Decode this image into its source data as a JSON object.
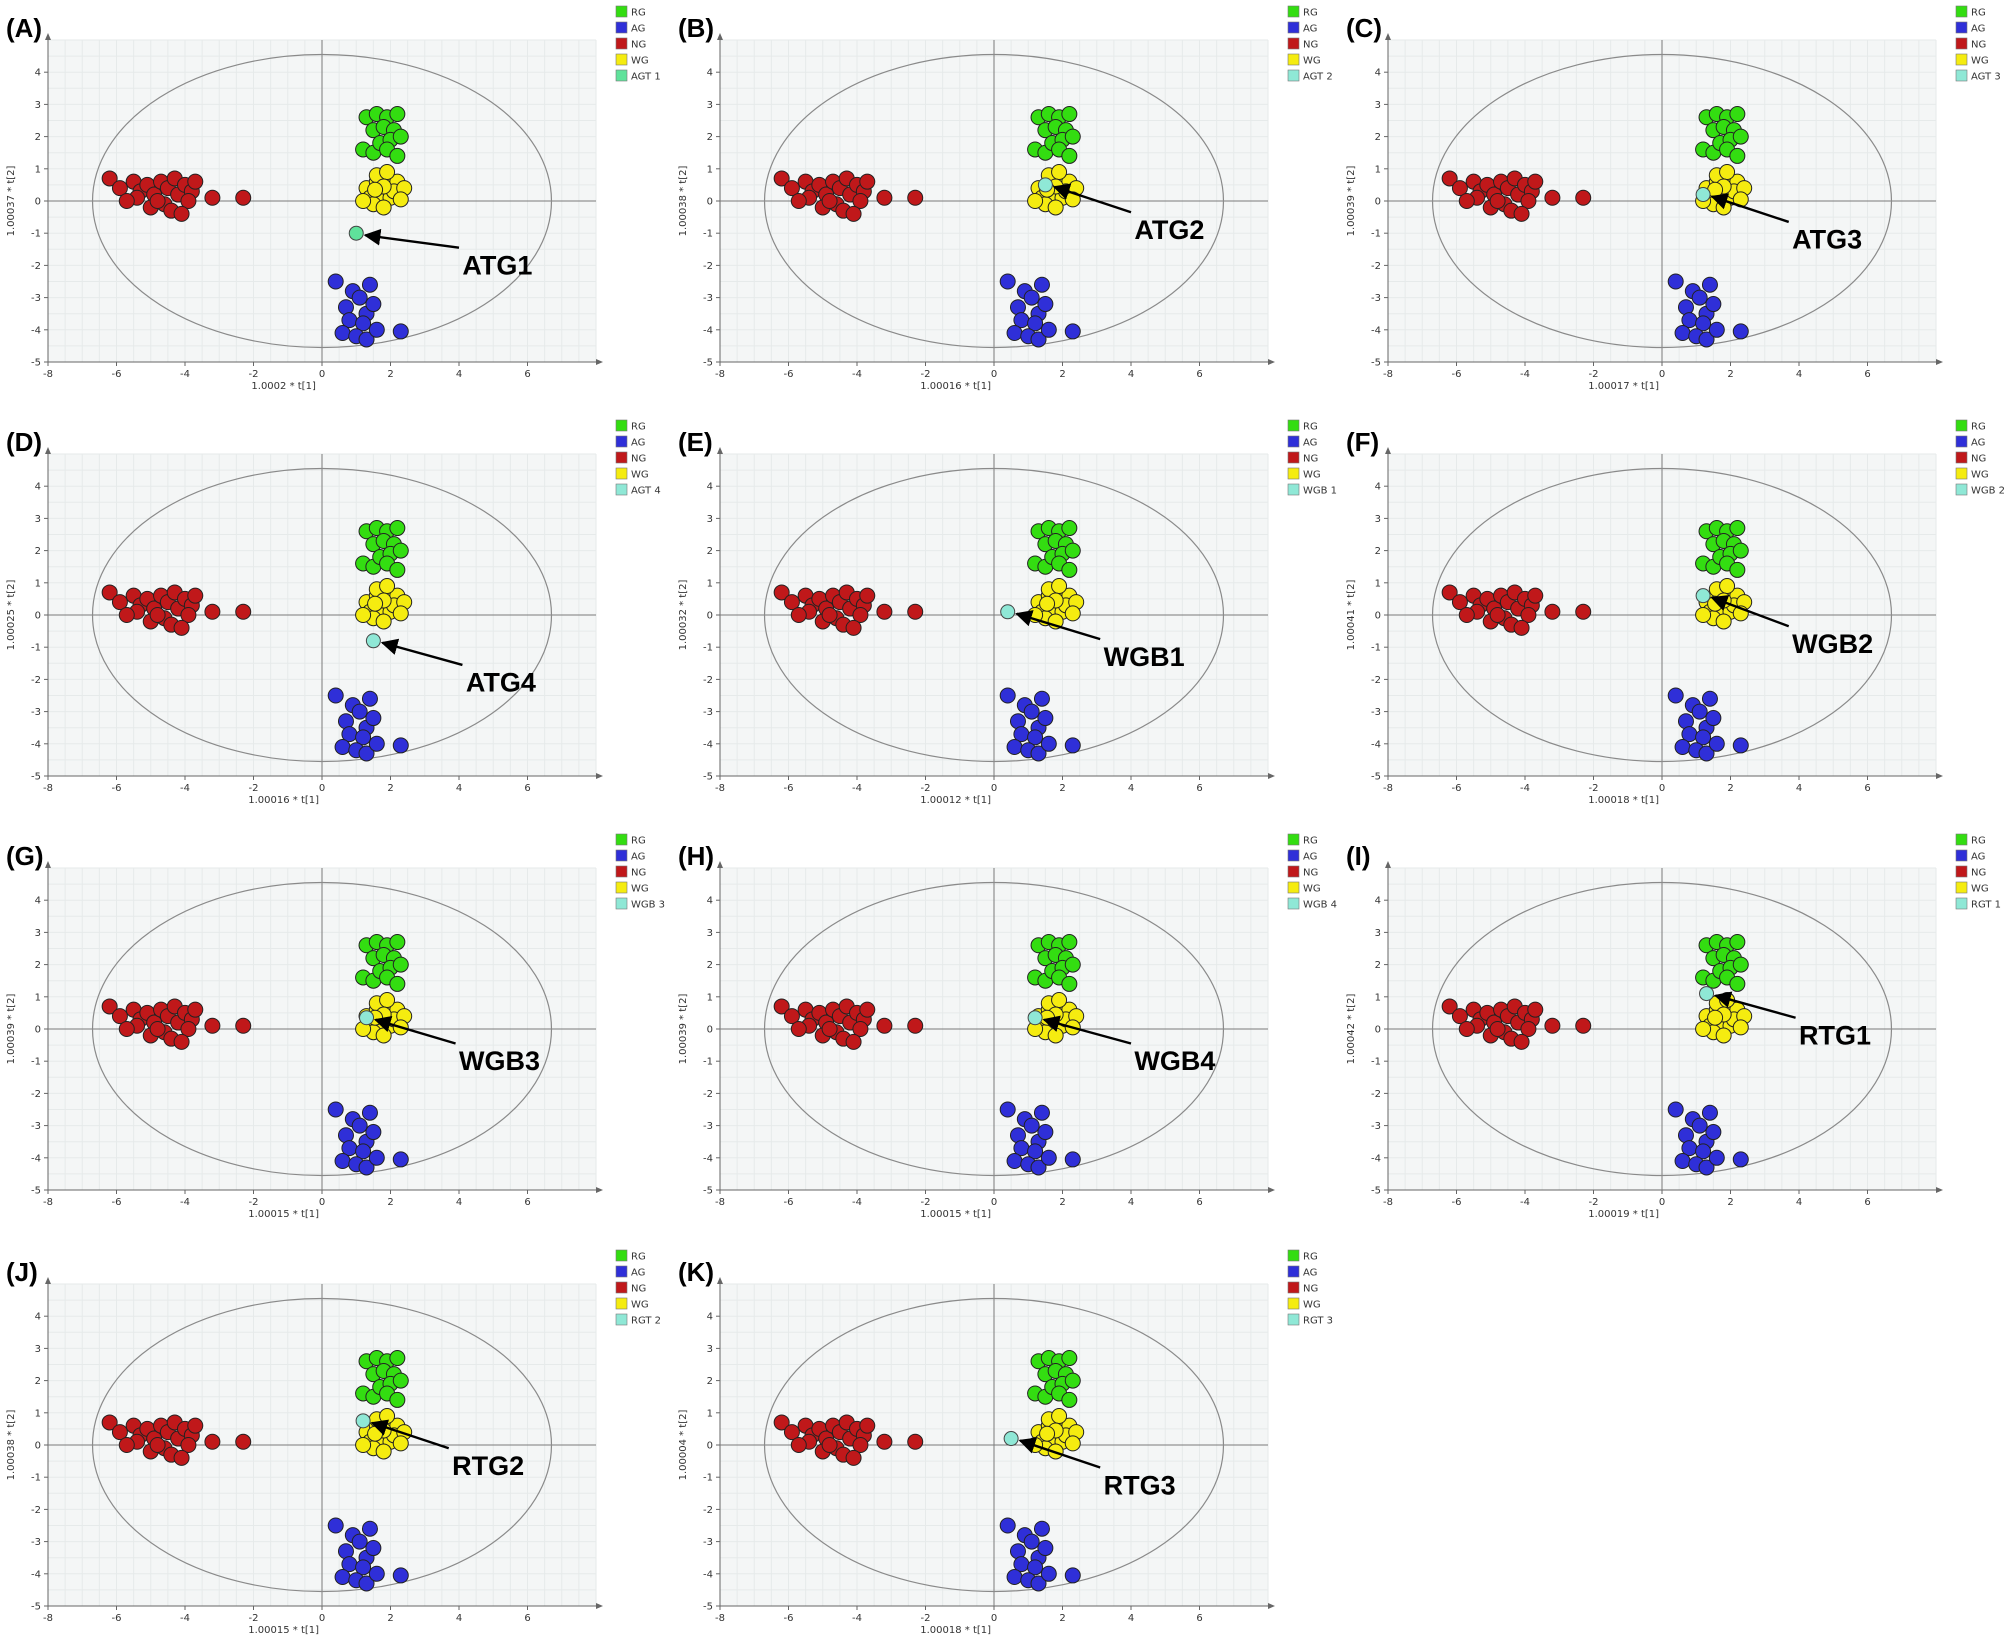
{
  "colors": {
    "RG": "#33dd11",
    "AG": "#2f2fd8",
    "NG": "#c0181a",
    "WG": "#f5ec10",
    "test": "#8fe8d6",
    "test_agt1": "#5fe29b"
  },
  "chart_data": [
    {
      "type": "scatter",
      "panel_label": "(A)",
      "xlabel": "1.0002 * t[1]",
      "ylabel": "1.00037 * t[2]",
      "xlim": [
        -8,
        8
      ],
      "ylim": [
        -5,
        5
      ],
      "xticks": [
        -8,
        -6,
        -4,
        -2,
        0,
        2,
        4,
        6
      ],
      "yticks": [
        -5,
        -4,
        -3,
        -2,
        -1,
        0,
        1,
        2,
        3,
        4
      ],
      "legend": [
        "RG",
        "AG",
        "NG",
        "WG",
        "AGT 1"
      ],
      "annotation": "ATG1",
      "test_point": [
        1,
        -1
      ],
      "test_color_key": "test_agt1",
      "arrow_from": [
        4.0,
        -1.45
      ],
      "text_at": [
        4.1,
        -2.0
      ]
    },
    {
      "type": "scatter",
      "panel_label": "(B)",
      "xlabel": "1.00016 * t[1]",
      "ylabel": "1.00038 * t[2]",
      "xlim": [
        -8,
        8
      ],
      "ylim": [
        -5,
        5
      ],
      "xticks": [
        -8,
        -6,
        -4,
        -2,
        0,
        2,
        4,
        6
      ],
      "yticks": [
        -5,
        -4,
        -3,
        -2,
        -1,
        0,
        1,
        2,
        3,
        4
      ],
      "legend": [
        "RG",
        "AG",
        "NG",
        "WG",
        "AGT 2"
      ],
      "annotation": "ATG2",
      "test_point": [
        1.5,
        0.5
      ],
      "test_color_key": "test",
      "arrow_from": [
        4.0,
        -0.35
      ],
      "text_at": [
        4.1,
        -0.9
      ]
    },
    {
      "type": "scatter",
      "panel_label": "(C)",
      "xlabel": "1.00017 * t[1]",
      "ylabel": "1.00039 * t[2]",
      "xlim": [
        -8,
        8
      ],
      "ylim": [
        -5,
        5
      ],
      "xticks": [
        -8,
        -6,
        -4,
        -2,
        0,
        2,
        4,
        6
      ],
      "yticks": [
        -5,
        -4,
        -3,
        -2,
        -1,
        0,
        1,
        2,
        3,
        4
      ],
      "legend": [
        "RG",
        "AG",
        "NG",
        "WG",
        "AGT 3"
      ],
      "annotation": "ATG3",
      "test_point": [
        1.2,
        0.2
      ],
      "test_color_key": "test",
      "arrow_from": [
        3.7,
        -0.65
      ],
      "text_at": [
        3.8,
        -1.2
      ]
    },
    {
      "type": "scatter",
      "panel_label": "(D)",
      "xlabel": "1.00016 * t[1]",
      "ylabel": "1.00025 * t[2]",
      "xlim": [
        -8,
        8
      ],
      "ylim": [
        -5,
        5
      ],
      "xticks": [
        -8,
        -6,
        -4,
        -2,
        0,
        2,
        4,
        6
      ],
      "yticks": [
        -5,
        -4,
        -3,
        -2,
        -1,
        0,
        1,
        2,
        3,
        4
      ],
      "legend": [
        "RG",
        "AG",
        "NG",
        "WG",
        "AGT 4"
      ],
      "annotation": "ATG4",
      "test_point": [
        1.5,
        -0.8
      ],
      "test_color_key": "test",
      "arrow_from": [
        4.1,
        -1.55
      ],
      "text_at": [
        4.2,
        -2.1
      ]
    },
    {
      "type": "scatter",
      "panel_label": "(E)",
      "xlabel": "1.00012 * t[1]",
      "ylabel": "1.00032 * t[2]",
      "xlim": [
        -8,
        8
      ],
      "ylim": [
        -5,
        5
      ],
      "xticks": [
        -8,
        -6,
        -4,
        -2,
        0,
        2,
        4,
        6
      ],
      "yticks": [
        -5,
        -4,
        -3,
        -2,
        -1,
        0,
        1,
        2,
        3,
        4
      ],
      "legend": [
        "RG",
        "AG",
        "NG",
        "WG",
        "WGB 1"
      ],
      "annotation": "WGB1",
      "test_point": [
        0.4,
        0.1
      ],
      "test_color_key": "test",
      "arrow_from": [
        3.1,
        -0.75
      ],
      "text_at": [
        3.2,
        -1.3
      ]
    },
    {
      "type": "scatter",
      "panel_label": "(F)",
      "xlabel": "1.00018 * t[1]",
      "ylabel": "1.00041 * t[2]",
      "xlim": [
        -8,
        8
      ],
      "ylim": [
        -5,
        5
      ],
      "xticks": [
        -8,
        -6,
        -4,
        -2,
        0,
        2,
        4,
        6
      ],
      "yticks": [
        -5,
        -4,
        -3,
        -2,
        -1,
        0,
        1,
        2,
        3,
        4
      ],
      "legend": [
        "RG",
        "AG",
        "NG",
        "WG",
        "WGB 2"
      ],
      "annotation": "WGB2",
      "test_point": [
        1.2,
        0.6
      ],
      "test_color_key": "test",
      "arrow_from": [
        3.7,
        -0.35
      ],
      "text_at": [
        3.8,
        -0.9
      ]
    },
    {
      "type": "scatter",
      "panel_label": "(G)",
      "xlabel": "1.00015 * t[1]",
      "ylabel": "1.00039 * t[2]",
      "xlim": [
        -8,
        8
      ],
      "ylim": [
        -5,
        5
      ],
      "xticks": [
        -8,
        -6,
        -4,
        -2,
        0,
        2,
        4,
        6
      ],
      "yticks": [
        -5,
        -4,
        -3,
        -2,
        -1,
        0,
        1,
        2,
        3,
        4
      ],
      "legend": [
        "RG",
        "AG",
        "NG",
        "WG",
        "WGB 3"
      ],
      "annotation": "WGB3",
      "test_point": [
        1.3,
        0.35
      ],
      "test_color_key": "test",
      "arrow_from": [
        3.9,
        -0.45
      ],
      "text_at": [
        4.0,
        -1.0
      ]
    },
    {
      "type": "scatter",
      "panel_label": "(H)",
      "xlabel": "1.00015 * t[1]",
      "ylabel": "1.00039 * t[2]",
      "xlim": [
        -8,
        8
      ],
      "ylim": [
        -5,
        5
      ],
      "xticks": [
        -8,
        -6,
        -4,
        -2,
        0,
        2,
        4,
        6
      ],
      "yticks": [
        -5,
        -4,
        -3,
        -2,
        -1,
        0,
        1,
        2,
        3,
        4
      ],
      "legend": [
        "RG",
        "AG",
        "NG",
        "WG",
        "WGB 4"
      ],
      "annotation": "WGB4",
      "test_point": [
        1.2,
        0.35
      ],
      "test_color_key": "test",
      "arrow_from": [
        4.0,
        -0.45
      ],
      "text_at": [
        4.1,
        -1.0
      ]
    },
    {
      "type": "scatter",
      "panel_label": "(I)",
      "xlabel": "1.00019 * t[1]",
      "ylabel": "1.00042 * t[2]",
      "xlim": [
        -8,
        8
      ],
      "ylim": [
        -5,
        5
      ],
      "xticks": [
        -8,
        -6,
        -4,
        -2,
        0,
        2,
        4,
        6
      ],
      "yticks": [
        -5,
        -4,
        -3,
        -2,
        -1,
        0,
        1,
        2,
        3,
        4
      ],
      "legend": [
        "RG",
        "AG",
        "NG",
        "WG",
        "RGT 1"
      ],
      "annotation": "RTG1",
      "test_point": [
        1.3,
        1.1
      ],
      "test_color_key": "test",
      "arrow_from": [
        3.9,
        0.35
      ],
      "text_at": [
        4.0,
        -0.2
      ]
    },
    {
      "type": "scatter",
      "panel_label": "(J)",
      "xlabel": "1.00015 * t[1]",
      "ylabel": "1.00038 * t[2]",
      "xlim": [
        -8,
        8
      ],
      "ylim": [
        -5,
        5
      ],
      "xticks": [
        -8,
        -6,
        -4,
        -2,
        0,
        2,
        4,
        6
      ],
      "yticks": [
        -5,
        -4,
        -3,
        -2,
        -1,
        0,
        1,
        2,
        3,
        4
      ],
      "legend": [
        "RG",
        "AG",
        "NG",
        "WG",
        "RGT 2"
      ],
      "annotation": "RTG2",
      "test_point": [
        1.2,
        0.75
      ],
      "test_color_key": "test",
      "arrow_from": [
        3.7,
        -0.1
      ],
      "text_at": [
        3.8,
        -0.65
      ]
    },
    {
      "type": "scatter",
      "panel_label": "(K)",
      "xlabel": "1.00018 * t[1]",
      "ylabel": "1.00004 * t[2]",
      "xlim": [
        -8,
        8
      ],
      "ylim": [
        -5,
        5
      ],
      "xticks": [
        -8,
        -6,
        -4,
        -2,
        0,
        2,
        4,
        6
      ],
      "yticks": [
        -5,
        -4,
        -3,
        -2,
        -1,
        0,
        1,
        2,
        3,
        4
      ],
      "legend": [
        "RG",
        "AG",
        "NG",
        "WG",
        "RGT 3"
      ],
      "annotation": "RTG3",
      "test_point": [
        0.5,
        0.2
      ],
      "test_color_key": "test",
      "arrow_from": [
        3.1,
        -0.7
      ],
      "text_at": [
        3.2,
        -1.25
      ]
    }
  ],
  "groups": {
    "RG": [
      [
        1.3,
        2.6
      ],
      [
        1.6,
        2.7
      ],
      [
        1.9,
        2.6
      ],
      [
        2.2,
        2.7
      ],
      [
        1.5,
        2.2
      ],
      [
        1.8,
        2.3
      ],
      [
        2.1,
        2.2
      ],
      [
        1.2,
        1.6
      ],
      [
        1.5,
        1.5
      ],
      [
        1.7,
        1.8
      ],
      [
        2.0,
        1.9
      ],
      [
        2.3,
        2.0
      ],
      [
        1.9,
        1.6
      ],
      [
        2.2,
        1.4
      ]
    ],
    "AG": [
      [
        0.4,
        -2.5
      ],
      [
        0.9,
        -2.8
      ],
      [
        1.4,
        -2.6
      ],
      [
        0.7,
        -3.3
      ],
      [
        1.1,
        -3.0
      ],
      [
        1.3,
        -3.5
      ],
      [
        0.8,
        -3.7
      ],
      [
        1.2,
        -3.8
      ],
      [
        0.6,
        -4.1
      ],
      [
        1.0,
        -4.2
      ],
      [
        1.3,
        -4.3
      ],
      [
        1.5,
        -3.2
      ],
      [
        1.6,
        -4.0
      ],
      [
        2.3,
        -4.05
      ]
    ],
    "NG": [
      [
        -6.2,
        0.7
      ],
      [
        -5.9,
        0.4
      ],
      [
        -5.5,
        0.6
      ],
      [
        -5.3,
        0.3
      ],
      [
        -5.1,
        0.5
      ],
      [
        -5.4,
        0.1
      ],
      [
        -4.9,
        0.2
      ],
      [
        -4.7,
        0.6
      ],
      [
        -4.5,
        0.4
      ],
      [
        -4.3,
        0.7
      ],
      [
        -4.2,
        0.2
      ],
      [
        -4.0,
        0.5
      ],
      [
        -3.8,
        0.3
      ],
      [
        -4.6,
        -0.1
      ],
      [
        -5.0,
        -0.2
      ],
      [
        -4.4,
        -0.3
      ],
      [
        -3.9,
        0.0
      ],
      [
        -3.7,
        0.6
      ],
      [
        -3.2,
        0.1
      ],
      [
        -2.3,
        0.1
      ],
      [
        -5.7,
        0.0
      ],
      [
        -4.1,
        -0.4
      ],
      [
        -4.8,
        0.0
      ]
    ],
    "WG": [
      [
        1.3,
        0.4
      ],
      [
        1.6,
        0.6
      ],
      [
        1.9,
        0.5
      ],
      [
        2.2,
        0.6
      ],
      [
        1.4,
        0.1
      ],
      [
        1.7,
        0.2
      ],
      [
        2.0,
        0.1
      ],
      [
        1.5,
        -0.1
      ],
      [
        1.8,
        -0.2
      ],
      [
        2.1,
        0.3
      ],
      [
        1.2,
        0.0
      ],
      [
        2.4,
        0.4
      ],
      [
        1.6,
        0.8
      ],
      [
        1.9,
        0.9
      ],
      [
        1.8,
        0.45
      ],
      [
        2.3,
        0.05
      ],
      [
        1.55,
        0.35
      ]
    ]
  }
}
